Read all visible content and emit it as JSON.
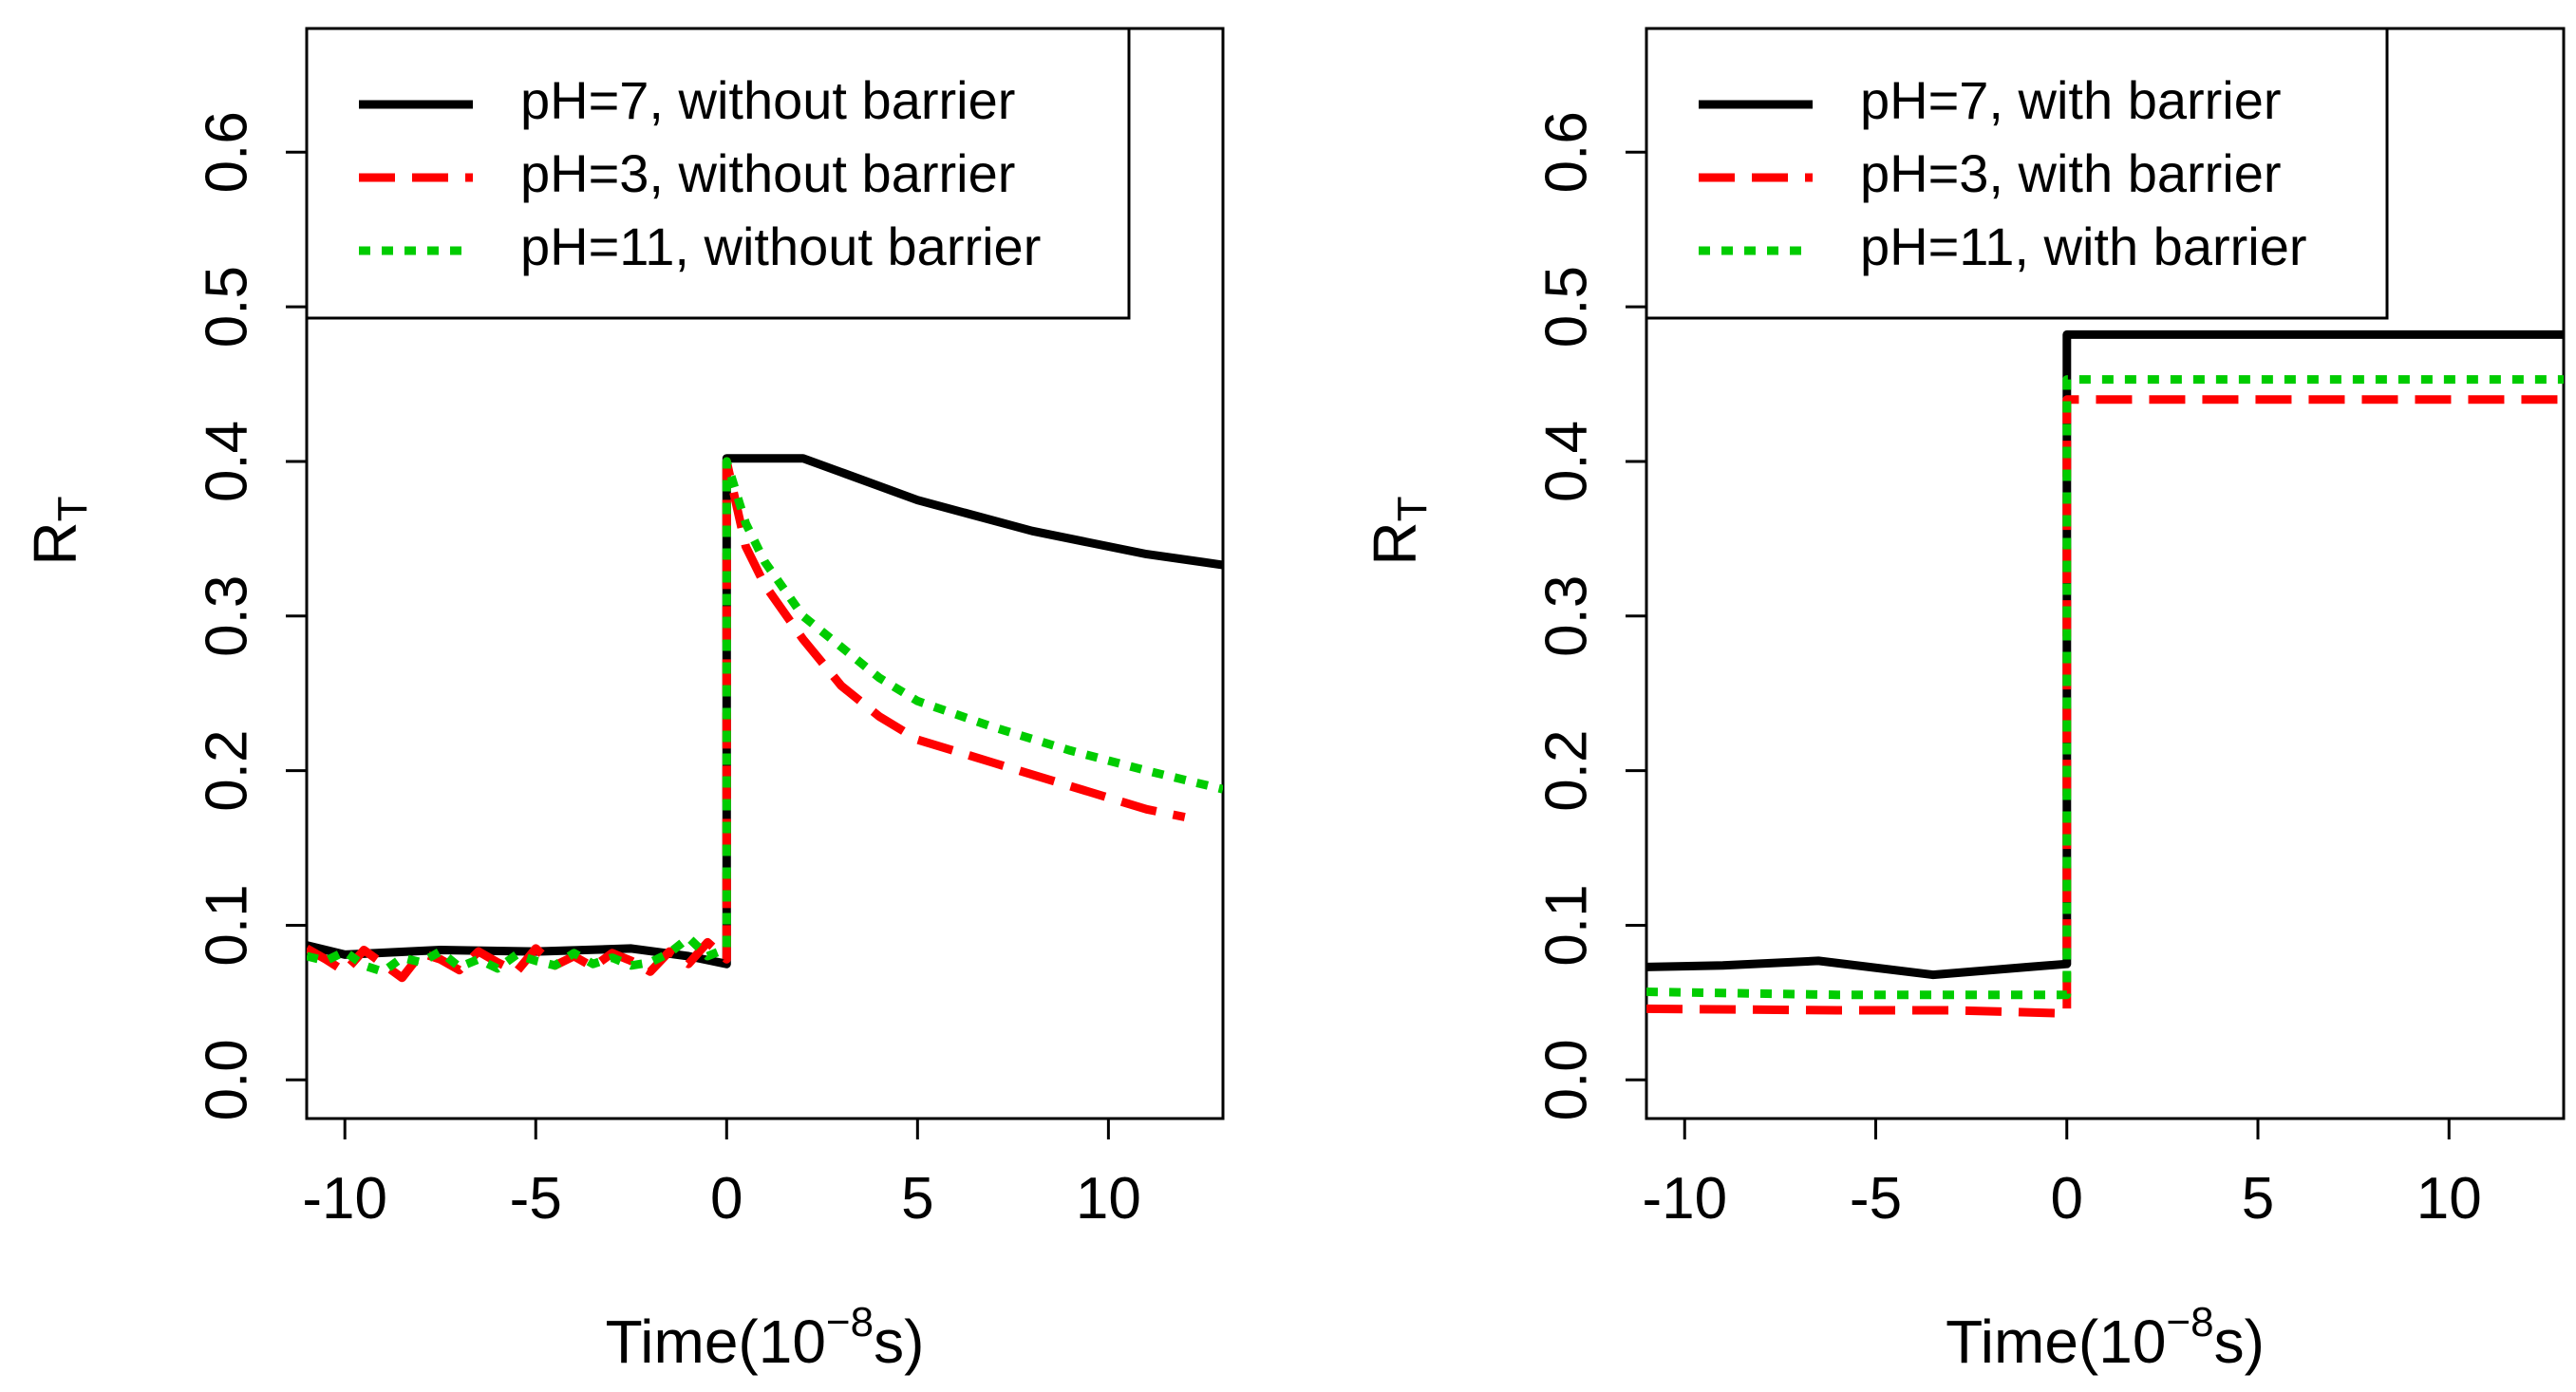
{
  "chart_data": [
    {
      "type": "line",
      "xlabel": "Time(10",
      "xlabel_exponent": "−8",
      "xlabel_suffix": "s)",
      "ylabel": "R",
      "ylabel_subscript": "T",
      "xlim": [
        -11,
        13
      ],
      "ylim": [
        -0.025,
        0.68
      ],
      "xticks": [
        "-10",
        "-5",
        "0",
        "5",
        "10"
      ],
      "yticks": [
        "0.0",
        "0.1",
        "0.2",
        "0.3",
        "0.4",
        "0.5",
        "0.6"
      ],
      "legend_position": "top-left",
      "series": [
        {
          "name": "pH=7, without barrier",
          "color": "#000000",
          "dash": "solid",
          "points": [
            [
              -11,
              0.087
            ],
            [
              -10,
              0.081
            ],
            [
              -7.5,
              0.084
            ],
            [
              -5,
              0.083
            ],
            [
              -2.5,
              0.085
            ],
            [
              -1,
              0.08
            ],
            [
              0,
              0.075
            ],
            [
              0,
              0.402
            ],
            [
              2,
              0.402
            ],
            [
              3,
              0.393
            ],
            [
              5,
              0.375
            ],
            [
              8,
              0.355
            ],
            [
              11,
              0.34
            ],
            [
              13,
              0.333
            ]
          ]
        },
        {
          "name": "pH=3, without barrier",
          "color": "#ff0000",
          "dash": "dashed",
          "points": [
            [
              -11,
              0.085
            ],
            [
              -10.5,
              0.078
            ],
            [
              -10,
              0.07
            ],
            [
              -9.5,
              0.084
            ],
            [
              -9,
              0.075
            ],
            [
              -8.5,
              0.066
            ],
            [
              -8,
              0.082
            ],
            [
              -7.5,
              0.078
            ],
            [
              -7,
              0.071
            ],
            [
              -6.5,
              0.083
            ],
            [
              -6,
              0.076
            ],
            [
              -5.5,
              0.07
            ],
            [
              -5,
              0.085
            ],
            [
              -4.5,
              0.074
            ],
            [
              -4,
              0.08
            ],
            [
              -3.5,
              0.073
            ],
            [
              -3,
              0.082
            ],
            [
              -2.5,
              0.077
            ],
            [
              -2,
              0.07
            ],
            [
              -1.5,
              0.083
            ],
            [
              -1,
              0.075
            ],
            [
              -0.5,
              0.089
            ],
            [
              0,
              0.078
            ],
            [
              0,
              0.4
            ],
            [
              0.5,
              0.345
            ],
            [
              1,
              0.32
            ],
            [
              2,
              0.285
            ],
            [
              3,
              0.255
            ],
            [
              4,
              0.235
            ],
            [
              5,
              0.22
            ],
            [
              7,
              0.205
            ],
            [
              9,
              0.19
            ],
            [
              11,
              0.175
            ],
            [
              12,
              0.17
            ]
          ]
        },
        {
          "name": "pH=11, without barrier",
          "color": "#00cc00",
          "dash": "dotted",
          "points": [
            [
              -11,
              0.08
            ],
            [
              -10.5,
              0.077
            ],
            [
              -10,
              0.083
            ],
            [
              -9.5,
              0.074
            ],
            [
              -9,
              0.07
            ],
            [
              -8.5,
              0.079
            ],
            [
              -8,
              0.076
            ],
            [
              -7.5,
              0.083
            ],
            [
              -7,
              0.073
            ],
            [
              -6.5,
              0.078
            ],
            [
              -6,
              0.072
            ],
            [
              -5.5,
              0.081
            ],
            [
              -5,
              0.077
            ],
            [
              -4.5,
              0.074
            ],
            [
              -4,
              0.082
            ],
            [
              -3.5,
              0.075
            ],
            [
              -3,
              0.079
            ],
            [
              -2.5,
              0.074
            ],
            [
              -2,
              0.076
            ],
            [
              -1.5,
              0.082
            ],
            [
              -1,
              0.092
            ],
            [
              -0.5,
              0.08
            ],
            [
              0,
              0.085
            ],
            [
              0,
              0.4
            ],
            [
              0.5,
              0.36
            ],
            [
              1,
              0.335
            ],
            [
              2,
              0.3
            ],
            [
              3,
              0.28
            ],
            [
              4,
              0.26
            ],
            [
              5,
              0.245
            ],
            [
              7,
              0.228
            ],
            [
              9,
              0.213
            ],
            [
              11,
              0.2
            ],
            [
              13,
              0.188
            ]
          ]
        }
      ]
    },
    {
      "type": "line",
      "xlabel": "Time(10",
      "xlabel_exponent": "−8",
      "xlabel_suffix": "s)",
      "ylabel": "R",
      "ylabel_subscript": "T",
      "xlim": [
        -11,
        13
      ],
      "ylim": [
        -0.025,
        0.68
      ],
      "xticks": [
        "-10",
        "-5",
        "0",
        "5",
        "10"
      ],
      "yticks": [
        "0.0",
        "0.1",
        "0.2",
        "0.3",
        "0.4",
        "0.5",
        "0.6"
      ],
      "legend_position": "top-left",
      "series": [
        {
          "name": "pH=7, with barrier",
          "color": "#000000",
          "dash": "solid",
          "points": [
            [
              -11,
              0.073
            ],
            [
              -9,
              0.074
            ],
            [
              -6.5,
              0.077
            ],
            [
              -3.5,
              0.068
            ],
            [
              -1,
              0.073
            ],
            [
              0,
              0.075
            ],
            [
              0,
              0.482
            ],
            [
              13,
              0.482
            ]
          ]
        },
        {
          "name": "pH=3, with barrier",
          "color": "#ff0000",
          "dash": "dashed",
          "points": [
            [
              -11,
              0.046
            ],
            [
              -6,
              0.045
            ],
            [
              -3,
              0.045
            ],
            [
              0,
              0.043
            ],
            [
              0,
              0.44
            ],
            [
              13,
              0.44
            ]
          ]
        },
        {
          "name": "pH=11, with barrier",
          "color": "#00cc00",
          "dash": "dotted",
          "points": [
            [
              -11,
              0.057
            ],
            [
              -6,
              0.055
            ],
            [
              -3,
              0.055
            ],
            [
              0,
              0.055
            ],
            [
              0,
              0.453
            ],
            [
              13,
              0.453
            ]
          ]
        }
      ]
    }
  ]
}
